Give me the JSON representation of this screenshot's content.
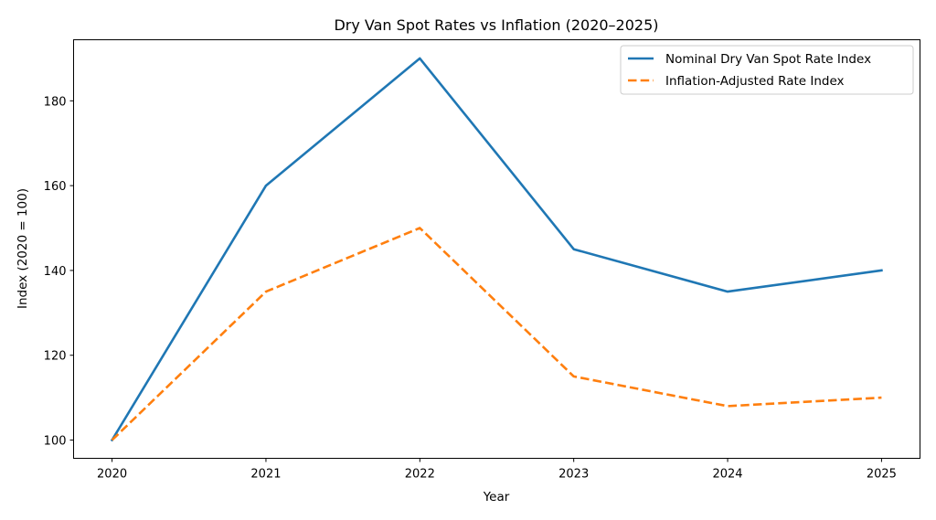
{
  "chart_data": {
    "type": "line",
    "title": "Dry Van Spot Rates vs Inflation (2020–2025)",
    "xlabel": "Year",
    "ylabel": "Index (2020 = 100)",
    "x": [
      2020,
      2021,
      2022,
      2023,
      2024,
      2025
    ],
    "x_tick_labels": [
      "2020",
      "2021",
      "2022",
      "2023",
      "2024",
      "2025"
    ],
    "y_ticks": [
      100,
      120,
      140,
      160,
      180
    ],
    "y_tick_labels": [
      "100",
      "120",
      "140",
      "160",
      "180"
    ],
    "xlim": [
      2019.75,
      2025.25
    ],
    "ylim": [
      95.7,
      194.4
    ],
    "grid": false,
    "legend_position": "top-right",
    "series": [
      {
        "name": "Nominal Dry Van Spot Rate Index",
        "values": [
          100,
          160,
          190,
          145,
          135,
          140
        ],
        "color": "#1f77b4",
        "style": "solid"
      },
      {
        "name": "Inflation-Adjusted Rate Index",
        "values": [
          100,
          135,
          150,
          115,
          108,
          110
        ],
        "color": "#ff7f0e",
        "style": "dashed"
      }
    ]
  }
}
